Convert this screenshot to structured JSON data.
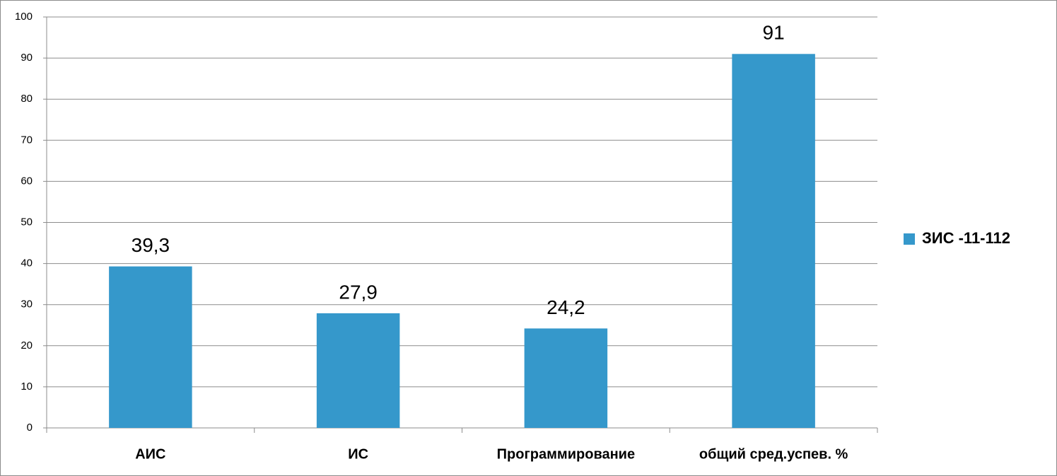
{
  "chart_data": {
    "type": "bar",
    "categories": [
      "АИС",
      "ИС",
      "Программирование",
      "общий сред.успев. %"
    ],
    "series": [
      {
        "name": "ЗИС -11-112",
        "color": "#3598cb",
        "values": [
          39.3,
          27.9,
          24.2,
          91
        ],
        "value_labels": [
          "39,3",
          "27,9",
          "24,2",
          "91"
        ]
      }
    ],
    "ylim": [
      0,
      100
    ],
    "yticks": [
      0,
      10,
      20,
      30,
      40,
      50,
      60,
      70,
      80,
      90,
      100
    ],
    "grid": true,
    "legend": "right"
  }
}
